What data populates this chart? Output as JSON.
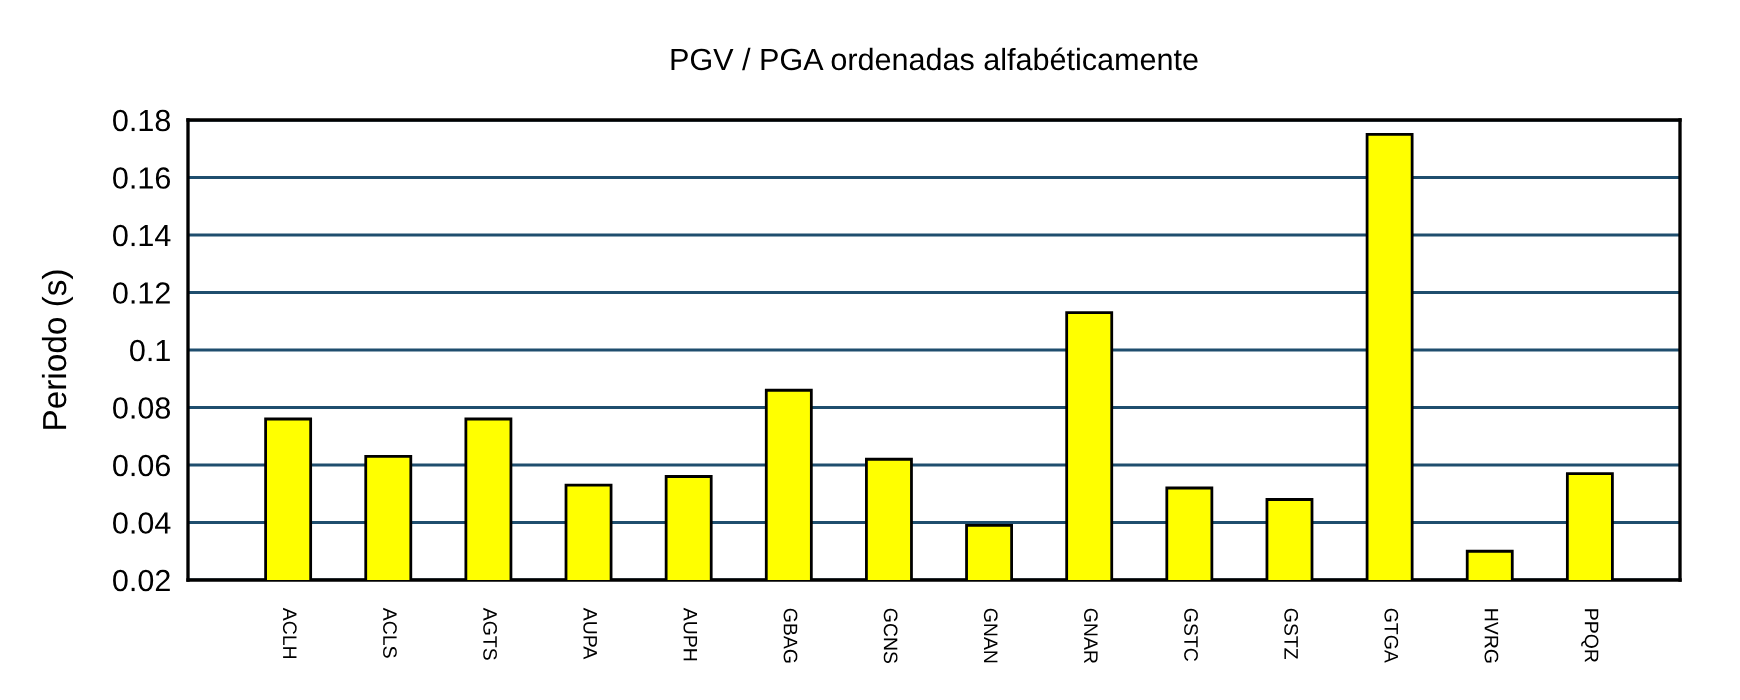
{
  "chart_data": {
    "type": "bar",
    "title": "PGV / PGA ordenadas alfabéticamente",
    "ylabel": "Periodo (s)",
    "categories": [
      "ACLH",
      "ACLS",
      "AGTS",
      "AUPA",
      "AUPH",
      "GBAG",
      "GCNS",
      "GNAN",
      "GNAR",
      "GSTC",
      "GSTZ",
      "GTGA",
      "HVRG",
      "PPQR"
    ],
    "values": [
      0.076,
      0.063,
      0.076,
      0.053,
      0.056,
      0.086,
      0.062,
      0.039,
      0.113,
      0.052,
      0.048,
      0.175,
      0.03,
      0.057
    ],
    "color": "#ffff00",
    "ylim": [
      0.02,
      0.18
    ],
    "yticks": [
      0.02,
      0.04,
      0.06,
      0.08,
      0.1,
      0.12,
      0.14,
      0.16,
      0.18
    ],
    "grid": "y"
  }
}
